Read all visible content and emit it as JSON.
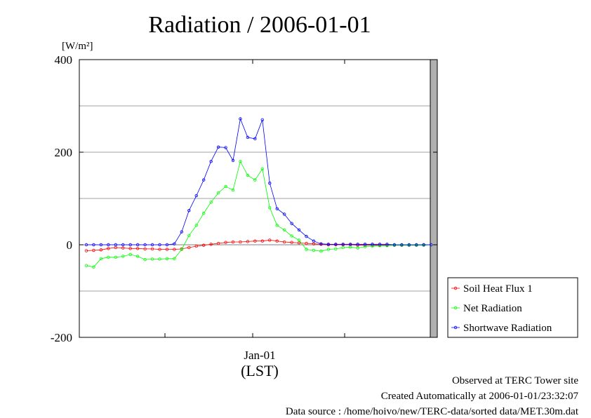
{
  "chart_data": {
    "type": "line",
    "title": "Radiation / 2006-01-01",
    "unit_label": "[W/m²]",
    "xlabel": "(LST)",
    "xtick_label": "Jan-01",
    "ylim": [
      -200,
      400
    ],
    "yticks": [
      -200,
      0,
      200,
      400
    ],
    "grid": true,
    "legend_position": "right",
    "x_hours": [
      0,
      0.5,
      1,
      1.5,
      2,
      2.5,
      3,
      3.5,
      4,
      4.5,
      5,
      5.5,
      6,
      6.5,
      7,
      7.5,
      8,
      8.5,
      9,
      9.5,
      10,
      10.5,
      11,
      11.5,
      12,
      12.5,
      13,
      13.5,
      14,
      14.5,
      15,
      15.5,
      16,
      16.5,
      17,
      17.5,
      18,
      18.5,
      19,
      19.5,
      20,
      20.5,
      21,
      21.5,
      22,
      22.5,
      23,
      23.5
    ],
    "series": [
      {
        "name": "Soil Heat Flux 1",
        "color": "#ff0000",
        "values": [
          -13,
          -12,
          -11,
          -8,
          -6,
          -7,
          -8,
          -8,
          -9,
          -9,
          -10,
          -10,
          -10,
          -9,
          -6,
          -3,
          -1,
          1,
          3,
          5,
          6,
          6,
          7,
          8,
          8,
          10,
          8,
          6,
          5,
          4,
          3,
          2,
          1,
          0,
          0,
          0,
          0,
          -1,
          -1,
          -1,
          -1,
          -1,
          -1,
          -1,
          -1,
          -1,
          0,
          0
        ]
      },
      {
        "name": "Net Radiation",
        "color": "#00ff00",
        "values": [
          -45,
          -48,
          -30,
          -27,
          -27,
          -25,
          -21,
          -25,
          -32,
          -31,
          -31,
          -30,
          -30,
          -10,
          20,
          42,
          68,
          92,
          112,
          126,
          118,
          180,
          150,
          140,
          164,
          80,
          42,
          32,
          19,
          10,
          -10,
          -12,
          -14,
          -10,
          -9,
          -6,
          -5,
          -7,
          -4,
          -3,
          -2,
          -2,
          -1,
          -1,
          -1,
          -1,
          -1,
          0
        ]
      },
      {
        "name": "Shortwave Radiation",
        "color": "#0000ff",
        "values": [
          0,
          0,
          0,
          0,
          0,
          0,
          0,
          0,
          0,
          0,
          0,
          0,
          2,
          28,
          74,
          106,
          140,
          180,
          211,
          210,
          182,
          272,
          232,
          229,
          270,
          133,
          78,
          66,
          46,
          32,
          18,
          8,
          2,
          1,
          1,
          1,
          1,
          1,
          1,
          1,
          1,
          1,
          0,
          0,
          0,
          0,
          0,
          0
        ]
      }
    ]
  },
  "footer": {
    "line1": "Observed at TERC Tower site",
    "line2": "Created Automatically at 2006-01-01/23:32:07",
    "line3": "Data source : /home/hoivo/new/TERC-data/sorted  data/MET.30m.dat"
  }
}
